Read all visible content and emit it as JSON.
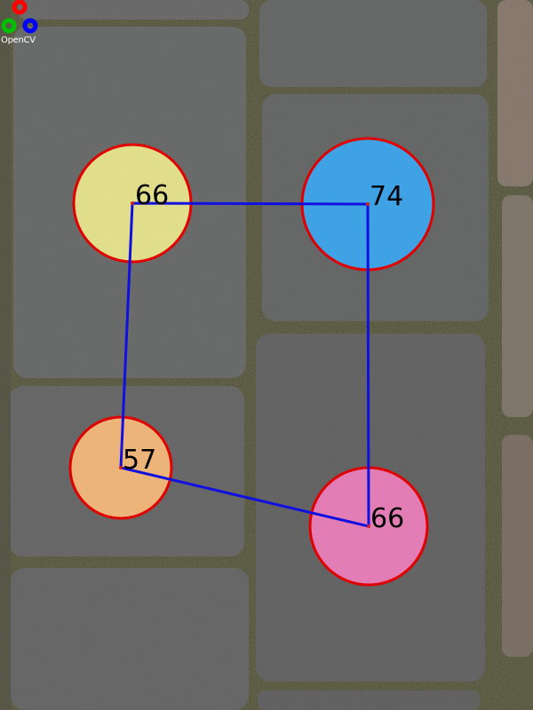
{
  "logo": {
    "text": "OpenCV",
    "colors": [
      "#ff0000",
      "#00c000",
      "#0000ff"
    ]
  },
  "outline_color": "#e00000",
  "path_color": "#1010e0",
  "circles": [
    {
      "id": "yellow",
      "label": "66",
      "fill": "#eeeb8f"
    },
    {
      "id": "blue",
      "label": "74",
      "fill": "#3aa8f2"
    },
    {
      "id": "orange",
      "label": "57",
      "fill": "#fbbd7b"
    },
    {
      "id": "pink",
      "label": "66",
      "fill": "#f17fbf"
    }
  ],
  "path_order": [
    "yellow",
    "blue",
    "pink",
    "orange"
  ]
}
